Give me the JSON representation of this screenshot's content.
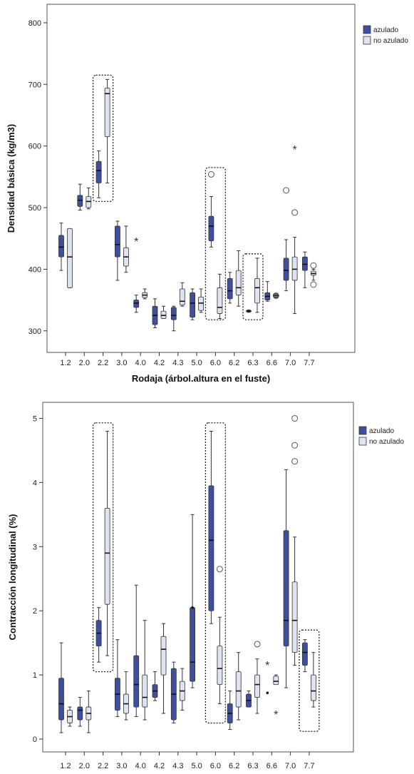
{
  "colors": {
    "azulado": "#3f4fa0",
    "no_azulado": "#dde3ef",
    "box_stroke": "#333333",
    "frame": "#555555"
  },
  "chart_data": [
    {
      "type": "boxplot",
      "ylabel": "Densidad básica (kg/m3)",
      "xlabel": "Rodaja (árbol.altura en el fuste)",
      "ylim": [
        265,
        830
      ],
      "yticks": [
        300,
        400,
        500,
        600,
        700,
        800
      ],
      "categories": [
        "1.2",
        "2.0",
        "2.2",
        "3.0",
        "4.0",
        "4.2",
        "4.3",
        "5.0",
        "6.0",
        "6.2",
        "6.3",
        "6.6",
        "7.0",
        "7.7"
      ],
      "legend": {
        "position": "top-right",
        "entries": [
          "azulado",
          "no azulado"
        ]
      },
      "series": [
        {
          "name": "azulado",
          "boxes": [
            {
              "cat": "1.2",
              "min": 398,
              "q1": 420,
              "median": 436,
              "q3": 455,
              "max": 475
            },
            {
              "cat": "2.0",
              "min": 496,
              "q1": 502,
              "median": 512,
              "q3": 520,
              "max": 538
            },
            {
              "cat": "2.2",
              "min": 516,
              "q1": 540,
              "median": 560,
              "q3": 575,
              "max": 592
            },
            {
              "cat": "3.0",
              "min": 382,
              "q1": 420,
              "median": 440,
              "q3": 470,
              "max": 478
            },
            {
              "cat": "4.0",
              "min": 330,
              "q1": 338,
              "median": 345,
              "q3": 350,
              "max": 358
            },
            {
              "cat": "4.2",
              "min": 305,
              "q1": 310,
              "median": 325,
              "q3": 340,
              "max": 352
            },
            {
              "cat": "4.3",
              "min": 300,
              "q1": 318,
              "median": 325,
              "q3": 338,
              "max": 340
            },
            {
              "cat": "5.0",
              "min": 318,
              "q1": 322,
              "median": 345,
              "q3": 362,
              "max": 368
            },
            {
              "cat": "6.0",
              "min": 436,
              "q1": 446,
              "median": 470,
              "q3": 486,
              "max": 518
            },
            {
              "cat": "6.2",
              "min": 345,
              "q1": 352,
              "median": 365,
              "q3": 385,
              "max": 395
            },
            {
              "cat": "6.3",
              "min": 330,
              "q1": 331,
              "median": 332,
              "q3": 333,
              "max": 334
            },
            {
              "cat": "6.6",
              "min": 348,
              "q1": 350,
              "median": 356,
              "q3": 362,
              "max": 380
            },
            {
              "cat": "7.0",
              "min": 365,
              "q1": 382,
              "median": 398,
              "q3": 418,
              "max": 448
            },
            {
              "cat": "7.7",
              "min": 370,
              "q1": 398,
              "median": 408,
              "q3": 420,
              "max": 428
            }
          ]
        },
        {
          "name": "no azulado",
          "boxes": [
            {
              "cat": "1.2",
              "min": 370,
              "q1": 370,
              "median": 420,
              "q3": 466,
              "max": 466
            },
            {
              "cat": "2.0",
              "min": 498,
              "q1": 500,
              "median": 510,
              "q3": 518,
              "max": 532
            },
            {
              "cat": "2.2",
              "min": 540,
              "q1": 615,
              "median": 685,
              "q3": 694,
              "max": 708
            },
            {
              "cat": "3.0",
              "min": 395,
              "q1": 405,
              "median": 420,
              "q3": 435,
              "max": 470
            },
            {
              "cat": "4.0",
              "min": 352,
              "q1": 354,
              "median": 358,
              "q3": 362,
              "max": 368
            },
            {
              "cat": "4.2",
              "min": 320,
              "q1": 320,
              "median": 325,
              "q3": 332,
              "max": 340
            },
            {
              "cat": "4.3",
              "min": 340,
              "q1": 342,
              "median": 348,
              "q3": 368,
              "max": 378
            },
            {
              "cat": "5.0",
              "min": 330,
              "q1": 333,
              "median": 345,
              "q3": 355,
              "max": 368
            },
            {
              "cat": "6.0",
              "min": 320,
              "q1": 328,
              "median": 338,
              "q3": 370,
              "max": 392
            },
            {
              "cat": "6.2",
              "min": 340,
              "q1": 358,
              "median": 370,
              "q3": 398,
              "max": 430
            },
            {
              "cat": "6.3",
              "min": 330,
              "q1": 345,
              "median": 370,
              "q3": 385,
              "max": 418
            },
            {
              "cat": "6.6",
              "min": 354,
              "q1": 355,
              "median": 357,
              "q3": 359,
              "max": 360
            },
            {
              "cat": "7.0",
              "min": 328,
              "q1": 382,
              "median": 400,
              "q3": 420,
              "max": 452
            },
            {
              "cat": "7.7",
              "min": 382,
              "q1": 390,
              "median": 393,
              "q3": 397,
              "max": 400
            }
          ]
        }
      ],
      "outliers": [
        {
          "cat": "4.0",
          "series": "azulado",
          "y": 447,
          "kind": "star"
        },
        {
          "cat": "6.0",
          "series": "azulado",
          "y": 554,
          "kind": "circle"
        },
        {
          "cat": "6.6",
          "series": "no azulado",
          "y": 357,
          "kind": "circle"
        },
        {
          "cat": "7.0",
          "series": "azulado",
          "y": 528,
          "kind": "circle"
        },
        {
          "cat": "7.0",
          "series": "no azulado",
          "y": 492,
          "kind": "circle"
        },
        {
          "cat": "7.0",
          "series": "no azulado",
          "y": 596,
          "kind": "star"
        },
        {
          "cat": "7.7",
          "series": "no azulado",
          "y": 406,
          "kind": "circle"
        },
        {
          "cat": "7.7",
          "series": "no azulado",
          "y": 375,
          "kind": "circle"
        }
      ],
      "highlight_boxes": [
        {
          "cats": [
            "2.2"
          ],
          "y_range": [
            510,
            715
          ]
        },
        {
          "cats": [
            "6.0"
          ],
          "y_range": [
            318,
            565
          ]
        },
        {
          "cats": [
            "6.3"
          ],
          "y_range": [
            318,
            425
          ]
        }
      ]
    },
    {
      "type": "boxplot",
      "ylabel": "Contracción longitudinal (%)",
      "xlabel": "Rodaja (árbol.altura en el fuste)",
      "ylim": [
        -0.2,
        5.25
      ],
      "yticks": [
        0,
        1,
        2,
        3,
        4,
        5
      ],
      "categories": [
        "1.2",
        "2.0",
        "2.2",
        "3.0",
        "4.0",
        "4.2",
        "4.3",
        "5.0",
        "6.0",
        "6.2",
        "6.3",
        "6.6",
        "7.0",
        "7.7"
      ],
      "legend": {
        "position": "top-right",
        "entries": [
          "azulado",
          "no azulado"
        ]
      },
      "series": [
        {
          "name": "azulado",
          "boxes": [
            {
              "cat": "1.2",
              "min": 0.1,
              "q1": 0.3,
              "median": 0.55,
              "q3": 0.95,
              "max": 1.5
            },
            {
              "cat": "2.0",
              "min": 0.2,
              "q1": 0.3,
              "median": 0.45,
              "q3": 0.5,
              "max": 0.65
            },
            {
              "cat": "2.2",
              "min": 1.2,
              "q1": 1.45,
              "median": 1.65,
              "q3": 1.85,
              "max": 2.05
            },
            {
              "cat": "3.0",
              "min": 0.35,
              "q1": 0.45,
              "median": 0.7,
              "q3": 0.95,
              "max": 1.55
            },
            {
              "cat": "4.0",
              "min": 0.35,
              "q1": 0.5,
              "median": 0.85,
              "q3": 1.3,
              "max": 2.4
            },
            {
              "cat": "4.2",
              "min": 0.6,
              "q1": 0.65,
              "median": 0.75,
              "q3": 0.85,
              "max": 1.05
            },
            {
              "cat": "4.3",
              "min": 0.25,
              "q1": 0.3,
              "median": 0.7,
              "q3": 1.1,
              "max": 1.2
            },
            {
              "cat": "5.0",
              "min": 0.8,
              "q1": 0.9,
              "median": 1.2,
              "q3": 2.05,
              "max": 3.5
            },
            {
              "cat": "6.0",
              "min": 1.8,
              "q1": 2.0,
              "median": 3.1,
              "q3": 3.95,
              "max": 4.8
            },
            {
              "cat": "6.2",
              "min": 0.15,
              "q1": 0.25,
              "median": 0.4,
              "q3": 0.55,
              "max": 0.75
            },
            {
              "cat": "6.3",
              "min": 0.5,
              "q1": 0.5,
              "median": 0.6,
              "q3": 0.7,
              "max": 0.75
            },
            {
              "cat": "7.0",
              "min": 0.8,
              "q1": 1.45,
              "median": 1.85,
              "q3": 3.25,
              "max": 4.2
            },
            {
              "cat": "7.7",
              "min": 1.05,
              "q1": 1.15,
              "median": 1.35,
              "q3": 1.5,
              "max": 1.55
            }
          ]
        },
        {
          "name": "no azulado",
          "boxes": [
            {
              "cat": "1.2",
              "min": 0.2,
              "q1": 0.25,
              "median": 0.35,
              "q3": 0.45,
              "max": 0.5
            },
            {
              "cat": "2.0",
              "min": 0.1,
              "q1": 0.3,
              "median": 0.4,
              "q3": 0.5,
              "max": 0.75
            },
            {
              "cat": "2.2",
              "min": 1.3,
              "q1": 2.1,
              "median": 2.9,
              "q3": 3.6,
              "max": 4.8
            },
            {
              "cat": "3.0",
              "min": 0.3,
              "q1": 0.4,
              "median": 0.55,
              "q3": 0.7,
              "max": 1.05
            },
            {
              "cat": "4.0",
              "min": 0.3,
              "q1": 0.5,
              "median": 0.65,
              "q3": 1.0,
              "max": 1.85
            },
            {
              "cat": "4.2",
              "min": 0.4,
              "q1": 1.0,
              "median": 1.4,
              "q3": 1.6,
              "max": 1.8
            },
            {
              "cat": "4.3",
              "min": 0.45,
              "q1": 0.6,
              "median": 0.75,
              "q3": 0.9,
              "max": 1.1
            },
            {
              "cat": "6.0",
              "min": 0.55,
              "q1": 0.85,
              "median": 1.1,
              "q3": 1.45,
              "max": 1.9
            },
            {
              "cat": "6.2",
              "min": 0.3,
              "q1": 0.5,
              "median": 0.75,
              "q3": 1.05,
              "max": 1.35
            },
            {
              "cat": "6.3",
              "min": 0.4,
              "q1": 0.65,
              "median": 0.85,
              "q3": 1.0,
              "max": 1.25
            },
            {
              "cat": "6.6",
              "min": 0.85,
              "q1": 0.85,
              "median": 0.9,
              "q3": 0.98,
              "max": 1.0
            },
            {
              "cat": "7.0",
              "min": 1.15,
              "q1": 1.35,
              "median": 1.85,
              "q3": 2.45,
              "max": 3.15
            },
            {
              "cat": "7.7",
              "min": 0.5,
              "q1": 0.6,
              "median": 0.75,
              "q3": 1.0,
              "max": 1.35
            }
          ]
        }
      ],
      "outliers": [
        {
          "cat": "5.0",
          "series": "azulado",
          "y": 2.05,
          "kind": "dot"
        },
        {
          "cat": "6.0",
          "series": "no azulado",
          "y": 2.65,
          "kind": "circle"
        },
        {
          "cat": "6.3",
          "series": "no azulado",
          "y": 1.48,
          "kind": "circle"
        },
        {
          "cat": "6.6",
          "series": "azulado",
          "y": 1.17,
          "kind": "star"
        },
        {
          "cat": "6.6",
          "series": "azulado",
          "y": 0.72,
          "kind": "dot"
        },
        {
          "cat": "6.6",
          "series": "no azulado",
          "y": 0.4,
          "kind": "star"
        },
        {
          "cat": "7.0",
          "series": "no azulado",
          "y": 5.0,
          "kind": "circle"
        },
        {
          "cat": "7.0",
          "series": "no azulado",
          "y": 4.58,
          "kind": "circle"
        },
        {
          "cat": "7.0",
          "series": "no azulado",
          "y": 4.33,
          "kind": "circle"
        }
      ],
      "highlight_boxes": [
        {
          "cats": [
            "2.2"
          ],
          "y_range": [
            1.05,
            4.93
          ]
        },
        {
          "cats": [
            "6.0"
          ],
          "y_range": [
            0.25,
            4.93
          ]
        },
        {
          "cats": [
            "7.7"
          ],
          "y_range": [
            0.12,
            1.7
          ]
        }
      ]
    }
  ]
}
